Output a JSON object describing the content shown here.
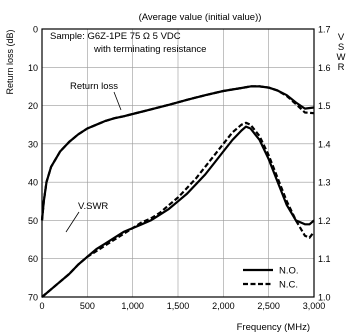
{
  "chart_data": {
    "type": "line",
    "header_note": "(Average value (initial value))",
    "annotation_lines": [
      "Sample: G6Z-1PE  75 Ω  5 VDC",
      "with terminating resistance"
    ],
    "xlabel": "Frequency (MHz)",
    "ylabel_left": "Return loss (dB)",
    "ylabel_right": "V S W R",
    "x_ticks": [
      "0",
      "500",
      "1,000",
      "1,500",
      "2,000",
      "2,500",
      "3,000"
    ],
    "y_left_ticks": [
      "0",
      "10",
      "20",
      "30",
      "40",
      "50",
      "60",
      "70"
    ],
    "y_right_ticks": [
      "1.7",
      "1.6",
      "1.5",
      "1.4",
      "1.3",
      "1.2",
      "1.1",
      "1.0"
    ],
    "xlim": [
      0,
      3000
    ],
    "ylim_left": [
      0,
      70
    ],
    "ylim_right": [
      1.0,
      1.7
    ],
    "left_axis_inverted": true,
    "grid": true,
    "legend_position": "bottom-right",
    "curve_labels": {
      "return_loss": "Return loss",
      "vswr": "V.SWR"
    },
    "series": [
      {
        "name": "N.O.",
        "key": "return_loss_no",
        "axis": "left",
        "style": "solid",
        "x": [
          0,
          20,
          50,
          100,
          150,
          200,
          300,
          400,
          500,
          600,
          700,
          800,
          900,
          1000,
          1200,
          1400,
          1600,
          1800,
          2000,
          2200,
          2300,
          2400,
          2500,
          2600,
          2700,
          2800,
          2900,
          3000
        ],
        "y": [
          50,
          45,
          40,
          36,
          34,
          32,
          29.5,
          27.5,
          26,
          25,
          24,
          23.3,
          22.8,
          22.2,
          21,
          19.8,
          18.5,
          17.3,
          16.2,
          15.4,
          15,
          15,
          15.3,
          16.1,
          17.3,
          19.2,
          20.8,
          20.5
        ]
      },
      {
        "name": "N.C.",
        "key": "return_loss_nc",
        "axis": "left",
        "style": "dashed",
        "x": [
          0,
          20,
          50,
          100,
          150,
          200,
          300,
          400,
          500,
          600,
          700,
          800,
          900,
          1000,
          1200,
          1400,
          1600,
          1800,
          2000,
          2200,
          2300,
          2400,
          2500,
          2600,
          2700,
          2800,
          2900,
          3000
        ],
        "y": [
          50,
          45,
          40,
          36,
          34,
          32,
          29.5,
          27.5,
          26,
          25,
          24,
          23.3,
          22.8,
          22.2,
          21,
          19.8,
          18.5,
          17.3,
          16.2,
          15.4,
          15,
          15,
          15.3,
          16.1,
          17.5,
          19.6,
          21.8,
          22
        ]
      },
      {
        "name": "N.O.",
        "key": "vswr_no",
        "axis": "right",
        "style": "solid",
        "x": [
          0,
          100,
          200,
          300,
          400,
          500,
          600,
          700,
          800,
          900,
          1000,
          1100,
          1200,
          1300,
          1400,
          1500,
          1600,
          1700,
          1800,
          1900,
          2000,
          2100,
          2200,
          2250,
          2300,
          2400,
          2500,
          2600,
          2700,
          2800,
          2900,
          2950,
          3000
        ],
        "y": [
          1.0,
          1.02,
          1.04,
          1.06,
          1.085,
          1.105,
          1.125,
          1.14,
          1.155,
          1.17,
          1.18,
          1.19,
          1.2,
          1.215,
          1.23,
          1.25,
          1.27,
          1.295,
          1.32,
          1.35,
          1.38,
          1.41,
          1.435,
          1.445,
          1.44,
          1.41,
          1.36,
          1.3,
          1.24,
          1.2,
          1.19,
          1.19,
          1.2
        ]
      },
      {
        "name": "N.C.",
        "key": "vswr_nc",
        "axis": "right",
        "style": "dashed",
        "x": [
          0,
          100,
          200,
          300,
          400,
          500,
          600,
          700,
          800,
          900,
          1000,
          1100,
          1200,
          1300,
          1400,
          1500,
          1600,
          1700,
          1800,
          1900,
          2000,
          2100,
          2200,
          2250,
          2300,
          2400,
          2500,
          2600,
          2700,
          2800,
          2900,
          2950,
          3000
        ],
        "y": [
          1.0,
          1.02,
          1.04,
          1.06,
          1.085,
          1.105,
          1.12,
          1.135,
          1.15,
          1.165,
          1.18,
          1.195,
          1.205,
          1.22,
          1.24,
          1.26,
          1.285,
          1.31,
          1.34,
          1.37,
          1.4,
          1.43,
          1.45,
          1.455,
          1.45,
          1.42,
          1.37,
          1.31,
          1.25,
          1.2,
          1.16,
          1.155,
          1.17
        ]
      }
    ],
    "legend": [
      {
        "label": "N.O.",
        "style": "solid"
      },
      {
        "label": "N.C.",
        "style": "dashed"
      }
    ]
  }
}
